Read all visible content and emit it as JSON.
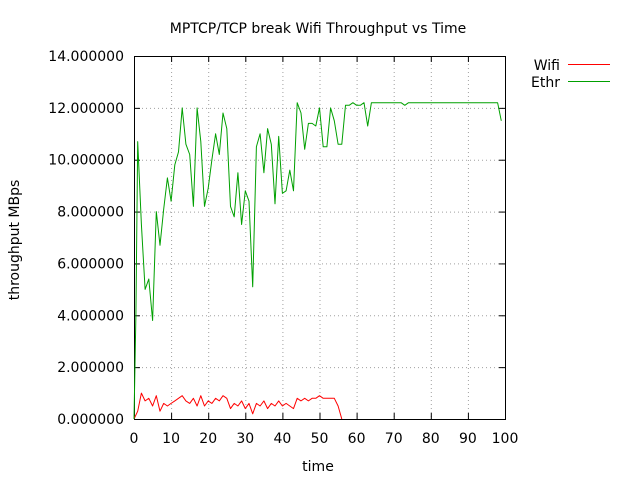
{
  "chart_data": {
    "type": "line",
    "title": "MPTCP/TCP break Wifi Throughput vs Time",
    "xlabel": "time",
    "ylabel": "throughput MBps",
    "xlim": [
      0,
      100
    ],
    "ylim": [
      0,
      14
    ],
    "xticks": [
      0,
      10,
      20,
      30,
      40,
      50,
      60,
      70,
      80,
      90,
      100
    ],
    "yticks": [
      "0.000000",
      "2.000000",
      "4.000000",
      "6.000000",
      "8.000000",
      "10.000000",
      "12.000000",
      "14.000000"
    ],
    "grid": true,
    "legend_position": "top-right outside",
    "series": [
      {
        "name": "Wifi",
        "color": "#ff0000",
        "points": [
          [
            0,
            0
          ],
          [
            1,
            0.3
          ],
          [
            2,
            1.0
          ],
          [
            3,
            0.7
          ],
          [
            4,
            0.8
          ],
          [
            5,
            0.5
          ],
          [
            6,
            0.9
          ],
          [
            7,
            0.3
          ],
          [
            8,
            0.6
          ],
          [
            9,
            0.5
          ],
          [
            10,
            0.6
          ],
          [
            11,
            0.7
          ],
          [
            12,
            0.8
          ],
          [
            13,
            0.9
          ],
          [
            14,
            0.7
          ],
          [
            15,
            0.6
          ],
          [
            16,
            0.8
          ],
          [
            17,
            0.5
          ],
          [
            18,
            0.9
          ],
          [
            19,
            0.5
          ],
          [
            20,
            0.7
          ],
          [
            21,
            0.6
          ],
          [
            22,
            0.8
          ],
          [
            23,
            0.7
          ],
          [
            24,
            0.9
          ],
          [
            25,
            0.8
          ],
          [
            26,
            0.4
          ],
          [
            27,
            0.6
          ],
          [
            28,
            0.5
          ],
          [
            29,
            0.7
          ],
          [
            30,
            0.4
          ],
          [
            31,
            0.6
          ],
          [
            32,
            0.2
          ],
          [
            33,
            0.6
          ],
          [
            34,
            0.5
          ],
          [
            35,
            0.7
          ],
          [
            36,
            0.4
          ],
          [
            37,
            0.6
          ],
          [
            38,
            0.5
          ],
          [
            39,
            0.7
          ],
          [
            40,
            0.5
          ],
          [
            41,
            0.6
          ],
          [
            42,
            0.5
          ],
          [
            43,
            0.4
          ],
          [
            44,
            0.8
          ],
          [
            45,
            0.7
          ],
          [
            46,
            0.8
          ],
          [
            47,
            0.7
          ],
          [
            48,
            0.8
          ],
          [
            49,
            0.8
          ],
          [
            50,
            0.9
          ],
          [
            51,
            0.8
          ],
          [
            52,
            0.8
          ],
          [
            53,
            0.8
          ],
          [
            54,
            0.8
          ],
          [
            55,
            0.5
          ],
          [
            56,
            0
          ]
        ]
      },
      {
        "name": "Ethr",
        "color": "#00a000",
        "points": [
          [
            0,
            0
          ],
          [
            0.5,
            4.0
          ],
          [
            1,
            10.7
          ],
          [
            2,
            7.5
          ],
          [
            3,
            5.0
          ],
          [
            4,
            5.4
          ],
          [
            5,
            3.8
          ],
          [
            6,
            8.0
          ],
          [
            7,
            6.7
          ],
          [
            8,
            8.1
          ],
          [
            9,
            9.3
          ],
          [
            10,
            8.4
          ],
          [
            11,
            9.8
          ],
          [
            12,
            10.3
          ],
          [
            13,
            12.0
          ],
          [
            14,
            10.6
          ],
          [
            15,
            10.2
          ],
          [
            16,
            8.2
          ],
          [
            17,
            12.0
          ],
          [
            18,
            10.7
          ],
          [
            19,
            8.2
          ],
          [
            20,
            8.9
          ],
          [
            21,
            10.0
          ],
          [
            22,
            11.0
          ],
          [
            23,
            10.2
          ],
          [
            24,
            11.8
          ],
          [
            25,
            11.2
          ],
          [
            26,
            8.2
          ],
          [
            27,
            7.8
          ],
          [
            28,
            9.5
          ],
          [
            29,
            7.5
          ],
          [
            30,
            8.8
          ],
          [
            31,
            8.4
          ],
          [
            32,
            5.1
          ],
          [
            33,
            10.5
          ],
          [
            34,
            11.0
          ],
          [
            35,
            9.5
          ],
          [
            36,
            11.2
          ],
          [
            37,
            10.6
          ],
          [
            38,
            8.3
          ],
          [
            39,
            10.9
          ],
          [
            40,
            8.7
          ],
          [
            41,
            8.8
          ],
          [
            42,
            9.6
          ],
          [
            43,
            8.8
          ],
          [
            44,
            12.2
          ],
          [
            45,
            11.8
          ],
          [
            46,
            10.4
          ],
          [
            47,
            11.4
          ],
          [
            48,
            11.4
          ],
          [
            49,
            11.3
          ],
          [
            50,
            12.0
          ],
          [
            51,
            10.5
          ],
          [
            52,
            10.5
          ],
          [
            53,
            12.0
          ],
          [
            54,
            11.5
          ],
          [
            55,
            10.6
          ],
          [
            56,
            10.6
          ],
          [
            57,
            12.1
          ],
          [
            58,
            12.1
          ],
          [
            59,
            12.2
          ],
          [
            60,
            12.1
          ],
          [
            61,
            12.1
          ],
          [
            62,
            12.2
          ],
          [
            63,
            11.3
          ],
          [
            64,
            12.2
          ],
          [
            65,
            12.2
          ],
          [
            70,
            12.2
          ],
          [
            72,
            12.2
          ],
          [
            73,
            12.1
          ],
          [
            74,
            12.2
          ],
          [
            80,
            12.2
          ],
          [
            90,
            12.2
          ],
          [
            98,
            12.2
          ],
          [
            99,
            11.5
          ]
        ]
      }
    ]
  }
}
